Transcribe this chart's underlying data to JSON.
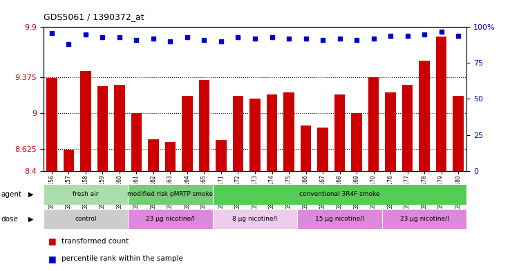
{
  "title": "GDS5061 / 1390372_at",
  "samples": [
    "GSM1217156",
    "GSM1217157",
    "GSM1217158",
    "GSM1217159",
    "GSM1217160",
    "GSM1217161",
    "GSM1217162",
    "GSM1217163",
    "GSM1217164",
    "GSM1217165",
    "GSM1217171",
    "GSM1217172",
    "GSM1217173",
    "GSM1217174",
    "GSM1217175",
    "GSM1217166",
    "GSM1217167",
    "GSM1217168",
    "GSM1217169",
    "GSM1217170",
    "GSM1217176",
    "GSM1217177",
    "GSM1217178",
    "GSM1217179",
    "GSM1217180"
  ],
  "bar_values": [
    9.37,
    8.62,
    9.44,
    9.28,
    9.3,
    9.0,
    8.73,
    8.7,
    9.18,
    9.35,
    8.72,
    9.18,
    9.15,
    9.2,
    9.22,
    8.87,
    8.85,
    9.2,
    9.0,
    9.38,
    9.22,
    9.3,
    9.55,
    9.8,
    9.18
  ],
  "percentile_values": [
    96,
    88,
    95,
    93,
    93,
    91,
    92,
    90,
    93,
    91,
    90,
    93,
    92,
    93,
    92,
    92,
    91,
    92,
    91,
    92,
    94,
    94,
    95,
    97,
    94
  ],
  "bar_color": "#cc0000",
  "dot_color": "#0000cc",
  "ylim_left": [
    8.4,
    9.9
  ],
  "ylim_right": [
    0,
    100
  ],
  "yticks_left": [
    8.4,
    8.625,
    9.0,
    9.375,
    9.9
  ],
  "ytick_labels_left": [
    "8.4",
    "8.625",
    "9",
    "9.375",
    "9.9"
  ],
  "yticks_right": [
    0,
    25,
    50,
    75,
    100
  ],
  "ytick_labels_right": [
    "0",
    "25",
    "50",
    "75",
    "100%"
  ],
  "hlines": [
    8.625,
    9.0,
    9.375
  ],
  "agent_groups": [
    {
      "label": "fresh air",
      "start": 0,
      "end": 5,
      "color": "#aaddaa"
    },
    {
      "label": "modified risk pMRTP smoke",
      "start": 5,
      "end": 10,
      "color": "#77cc77"
    },
    {
      "label": "conventional 3R4F smoke",
      "start": 10,
      "end": 25,
      "color": "#55cc55"
    }
  ],
  "dose_groups": [
    {
      "label": "control",
      "start": 0,
      "end": 5,
      "color": "#cccccc"
    },
    {
      "label": "23 μg nicotine/l",
      "start": 5,
      "end": 10,
      "color": "#dd88dd"
    },
    {
      "label": "8 μg nicotine/l",
      "start": 10,
      "end": 15,
      "color": "#eeccee"
    },
    {
      "label": "15 μg nicotine/l",
      "start": 15,
      "end": 20,
      "color": "#dd88dd"
    },
    {
      "label": "23 μg nicotine/l",
      "start": 20,
      "end": 25,
      "color": "#dd88dd"
    }
  ],
  "legend_items": [
    {
      "label": "transformed count",
      "color": "#cc0000"
    },
    {
      "label": "percentile rank within the sample",
      "color": "#0000cc"
    }
  ]
}
